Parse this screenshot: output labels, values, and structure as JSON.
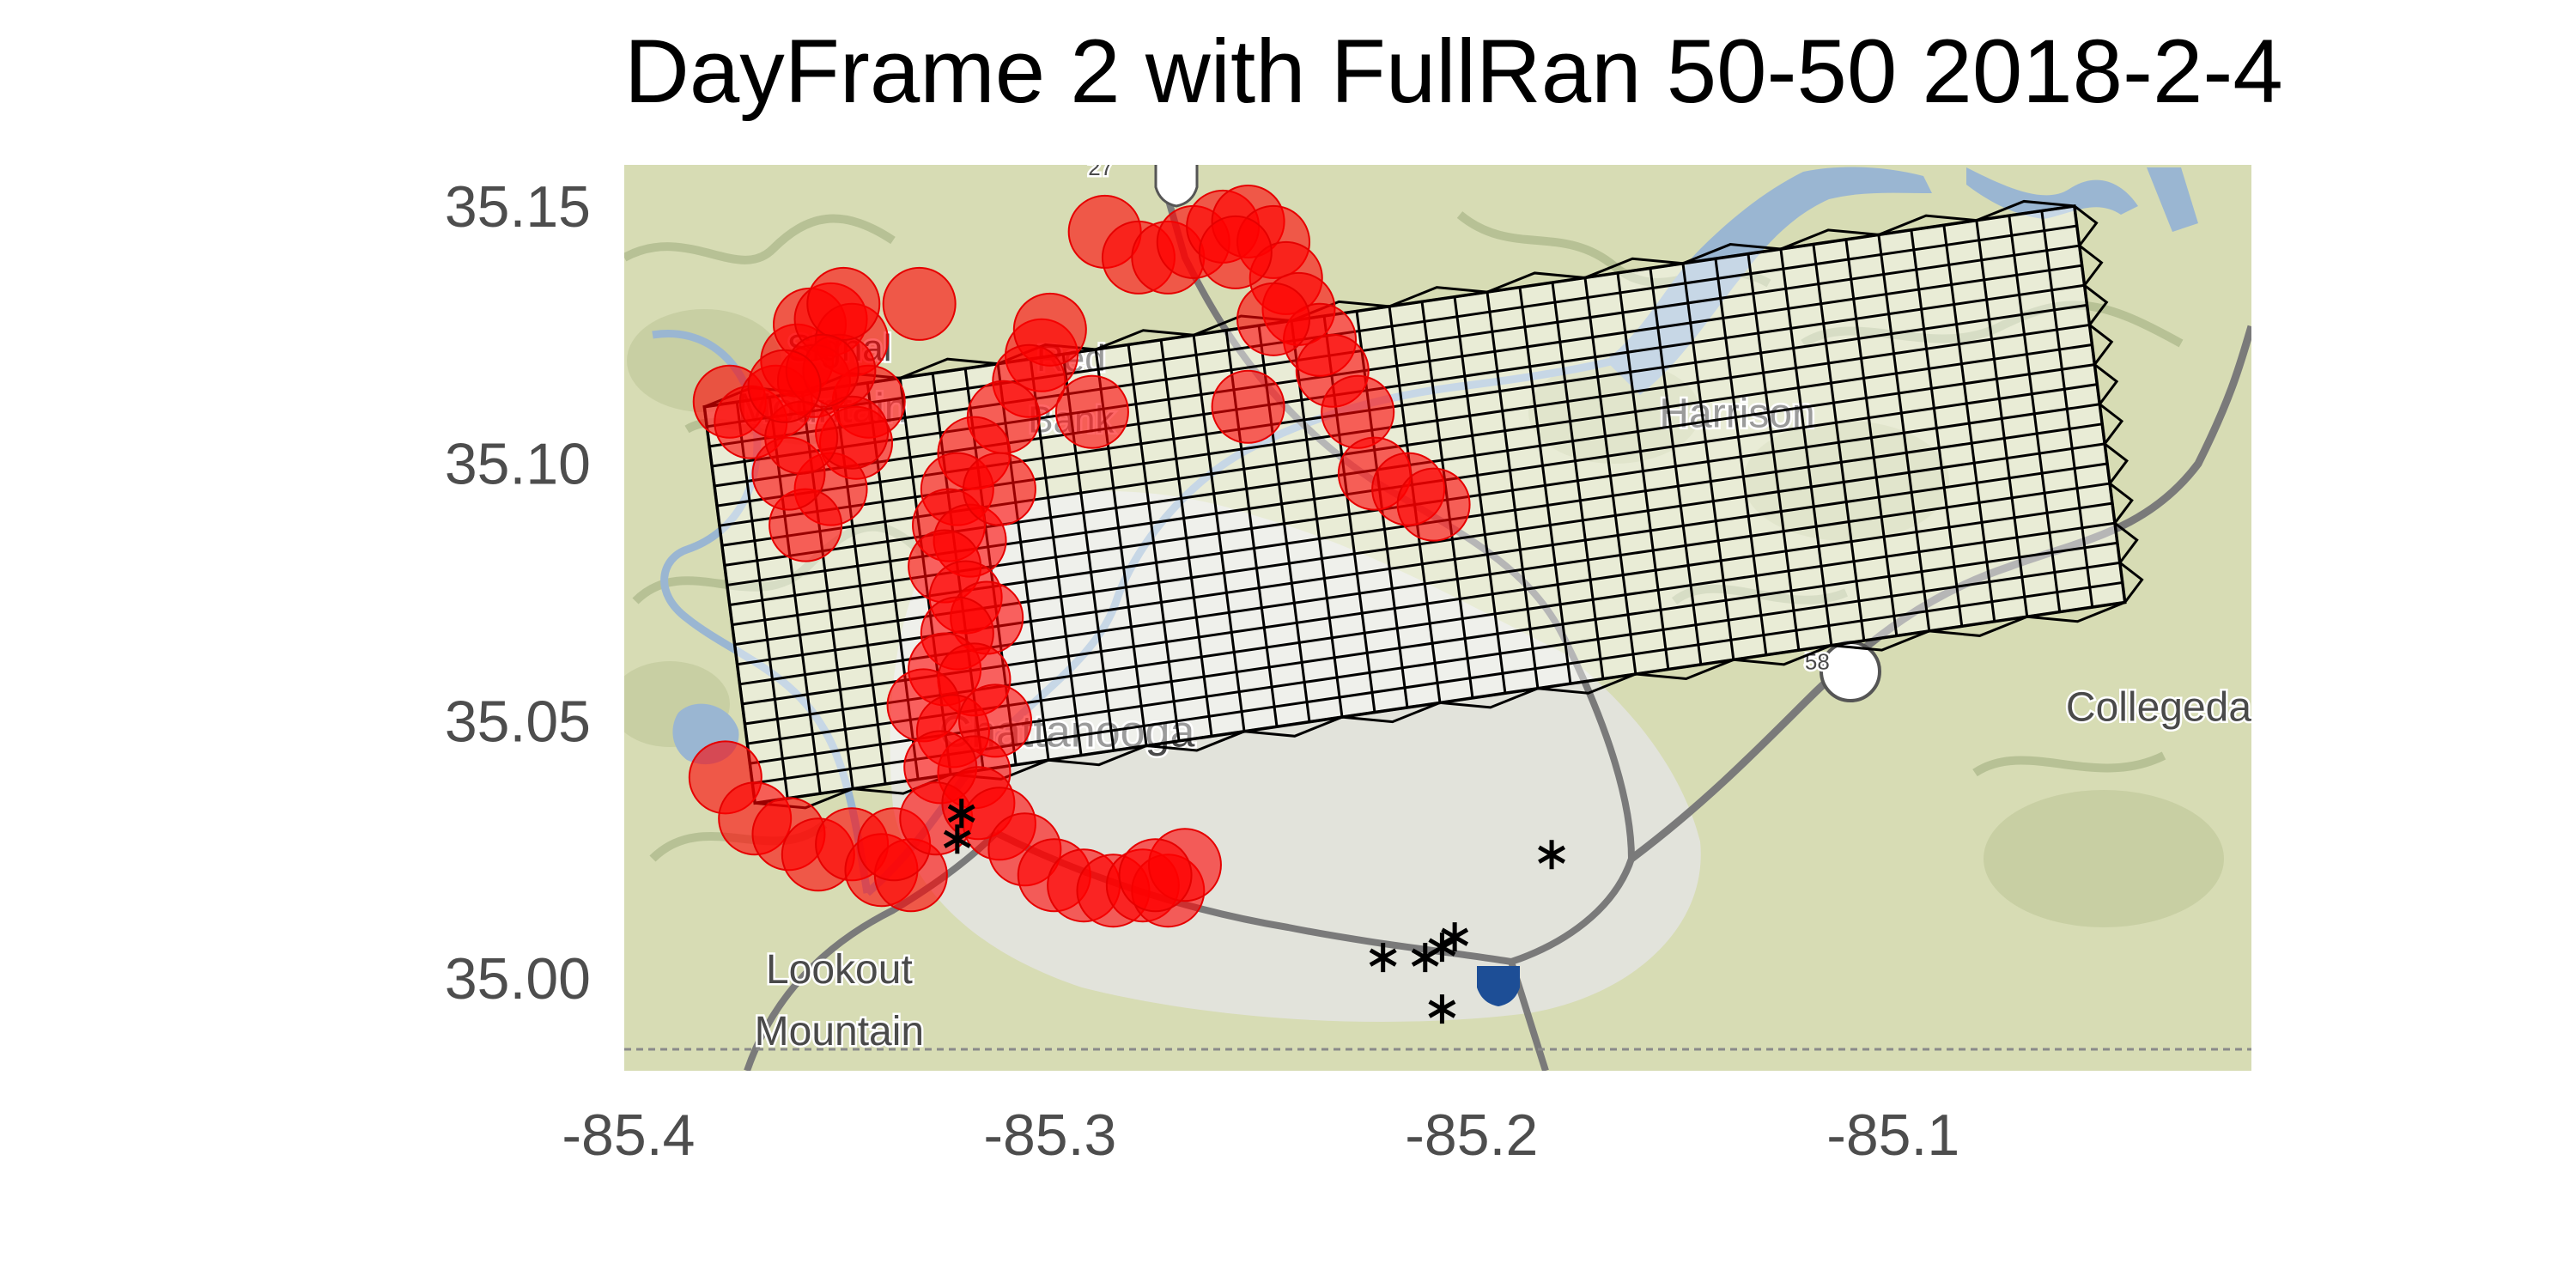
{
  "title": "DayFrame 2 with FullRan 50-50 2018-2-4",
  "colors": {
    "circle_fill": "#ff0000",
    "circle_stroke": "#e60000",
    "grid_stroke": "#000000",
    "cell_fill": "#ffffff",
    "terrain_base": "#d7dcb4",
    "water": "#9ab6d2",
    "city": "#e3e3df",
    "road": "#7a7a7a",
    "tick_text": "#4d4d4d"
  },
  "axes": {
    "x_ticks": [
      "-85.4",
      "-85.3",
      "-85.2",
      "-85.1"
    ],
    "x_tick_values": [
      -85.4,
      -85.3,
      -85.2,
      -85.1
    ],
    "y_ticks": [
      "35.00",
      "35.05",
      "35.10",
      "35.15"
    ],
    "y_tick_values": [
      35.0,
      35.05,
      35.1,
      35.15
    ],
    "xlim": [
      -85.401,
      -85.015
    ],
    "ylim": [
      34.982,
      35.158
    ]
  },
  "map_labels": [
    {
      "text": "Lookout",
      "lon": -85.35,
      "lat": 34.999
    },
    {
      "text": "Mountain",
      "lon": -85.35,
      "lat": 34.987
    },
    {
      "text": "Chattanooga",
      "lon": -85.296,
      "lat": 35.045
    },
    {
      "text": "Harrison",
      "lon": -85.137,
      "lat": 35.107
    },
    {
      "text": "Collegeda",
      "lon": -85.037,
      "lat": 35.05
    },
    {
      "text": "Red",
      "lon": -85.295,
      "lat": 35.118
    },
    {
      "text": "Bank",
      "lon": -85.295,
      "lat": 35.106
    },
    {
      "text": "Mountain",
      "lon": -85.354,
      "lat": 35.108
    },
    {
      "text": "Signal",
      "lon": -85.35,
      "lat": 35.12
    },
    {
      "text": "27",
      "lon": -85.288,
      "lat": 35.156
    },
    {
      "text": "58",
      "lon": -85.118,
      "lat": 35.06
    }
  ],
  "chart_data": {
    "type": "scatter",
    "title": "DayFrame 2 with FullRan 50-50 2018-2-4",
    "xlabel": "",
    "ylabel": "",
    "xlim": [
      -85.401,
      -85.015
    ],
    "ylim": [
      34.982,
      35.158
    ],
    "grid": {
      "description": "rotated hex-tessellation grid over Chattanooga",
      "corner_nw": [
        -85.382,
        35.111
      ],
      "corner_ne": [
        -85.057,
        35.15
      ],
      "corner_sw": [
        -85.37,
        35.034
      ],
      "columns": 42,
      "rows": 20
    },
    "series": [
      {
        "name": "detections (red circles)",
        "marker": "circle",
        "points": [
          [
            -85.376,
            35.112
          ],
          [
            -85.371,
            35.108
          ],
          [
            -85.365,
            35.112
          ],
          [
            -85.36,
            35.12
          ],
          [
            -85.357,
            35.127
          ],
          [
            -85.352,
            35.128
          ],
          [
            -85.347,
            35.124
          ],
          [
            -85.343,
            35.112
          ],
          [
            -85.346,
            35.104
          ],
          [
            -85.352,
            35.095
          ],
          [
            -85.358,
            35.088
          ],
          [
            -85.362,
            35.098
          ],
          [
            -85.356,
            35.116
          ],
          [
            -85.35,
            35.118
          ],
          [
            -85.347,
            35.106
          ],
          [
            -85.349,
            35.131
          ],
          [
            -85.354,
            35.118
          ],
          [
            -85.359,
            35.105
          ],
          [
            -85.363,
            35.115
          ],
          [
            -85.331,
            35.131
          ],
          [
            -85.302,
            35.121
          ],
          [
            -85.3,
            35.126
          ],
          [
            -85.305,
            35.116
          ],
          [
            -85.29,
            35.11
          ],
          [
            -85.311,
            35.109
          ],
          [
            -85.318,
            35.102
          ],
          [
            -85.322,
            35.095
          ],
          [
            -85.324,
            35.088
          ],
          [
            -85.319,
            35.085
          ],
          [
            -85.312,
            35.095
          ],
          [
            -85.325,
            35.08
          ],
          [
            -85.32,
            35.074
          ],
          [
            -85.315,
            35.07
          ],
          [
            -85.322,
            35.067
          ],
          [
            -85.325,
            35.06
          ],
          [
            -85.318,
            35.058
          ],
          [
            -85.33,
            35.053
          ],
          [
            -85.323,
            35.048
          ],
          [
            -85.313,
            35.05
          ],
          [
            -85.318,
            35.04
          ],
          [
            -85.326,
            35.041
          ],
          [
            -85.377,
            35.039
          ],
          [
            -85.37,
            35.031
          ],
          [
            -85.362,
            35.028
          ],
          [
            -85.355,
            35.024
          ],
          [
            -85.347,
            35.026
          ],
          [
            -85.34,
            35.021
          ],
          [
            -85.333,
            35.02
          ],
          [
            -85.337,
            35.026
          ],
          [
            -85.327,
            35.031
          ],
          [
            -85.317,
            35.034
          ],
          [
            -85.312,
            35.03
          ],
          [
            -85.306,
            35.025
          ],
          [
            -85.299,
            35.02
          ],
          [
            -85.292,
            35.018
          ],
          [
            -85.285,
            35.017
          ],
          [
            -85.278,
            35.018
          ],
          [
            -85.272,
            35.017
          ],
          [
            -85.268,
            35.022
          ],
          [
            -85.275,
            35.02
          ],
          [
            -85.287,
            35.145
          ],
          [
            -85.279,
            35.14
          ],
          [
            -85.272,
            35.14
          ],
          [
            -85.266,
            35.143
          ],
          [
            -85.259,
            35.146
          ],
          [
            -85.253,
            35.147
          ],
          [
            -85.247,
            35.143
          ],
          [
            -85.244,
            35.136
          ],
          [
            -85.241,
            35.13
          ],
          [
            -85.236,
            35.124
          ],
          [
            -85.233,
            35.118
          ],
          [
            -85.227,
            35.11
          ],
          [
            -85.253,
            35.111
          ],
          [
            -85.223,
            35.098
          ],
          [
            -85.215,
            35.095
          ],
          [
            -85.209,
            35.092
          ],
          [
            -85.256,
            35.141
          ],
          [
            -85.247,
            35.128
          ]
        ]
      },
      {
        "name": "stations (black asterisks)",
        "marker": "asterisk",
        "points": [
          [
            -85.321,
            35.032
          ],
          [
            -85.322,
            35.027
          ],
          [
            -85.181,
            35.024
          ],
          [
            -85.221,
            35.004
          ],
          [
            -85.211,
            35.004
          ],
          [
            -85.207,
            35.006
          ],
          [
            -85.204,
            35.008
          ],
          [
            -85.207,
            34.994
          ]
        ]
      }
    ]
  }
}
